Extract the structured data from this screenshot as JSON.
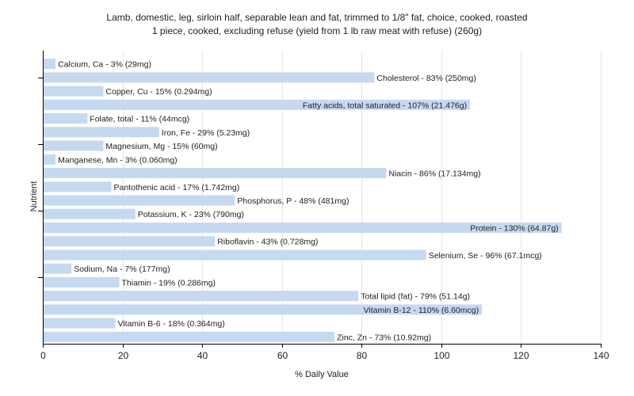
{
  "chart_data": {
    "type": "bar",
    "orientation": "horizontal",
    "title_line1": "Lamb, domestic, leg, sirloin half, separable lean and fat, trimmed to 1/8\" fat, choice, cooked, roasted",
    "title_line2": "1 piece, cooked, excluding refuse (yield from 1 lb raw meat with refuse) (260g)",
    "xlabel": "% Daily Value",
    "ylabel": "Nutrient",
    "xlim": [
      0,
      140
    ],
    "xticks": [
      0,
      20,
      40,
      60,
      80,
      100,
      120,
      140
    ],
    "grid": true,
    "bar_color": "#c5d9f1",
    "categories": [
      "Calcium, Ca",
      "Cholesterol",
      "Copper, Cu",
      "Fatty acids, total saturated",
      "Folate, total",
      "Iron, Fe",
      "Magnesium, Mg",
      "Manganese, Mn",
      "Niacin",
      "Pantothenic acid",
      "Phosphorus, P",
      "Potassium, K",
      "Protein",
      "Riboflavin",
      "Selenium, Se",
      "Sodium, Na",
      "Thiamin",
      "Total lipid (fat)",
      "Vitamin B-12",
      "Vitamin B-6",
      "Zinc, Zn"
    ],
    "values": [
      3,
      83,
      15,
      107,
      11,
      29,
      15,
      3,
      86,
      17,
      48,
      23,
      130,
      43,
      96,
      7,
      19,
      79,
      110,
      18,
      73
    ],
    "labels": [
      "Calcium, Ca - 3% (29mg)",
      "Cholesterol - 83% (250mg)",
      "Copper, Cu - 15% (0.294mg)",
      "Fatty acids, total saturated - 107% (21.476g)",
      "Folate, total - 11% (44mcg)",
      "Iron, Fe - 29% (5.23mg)",
      "Magnesium, Mg - 15% (60mg)",
      "Manganese, Mn - 3% (0.060mg)",
      "Niacin - 86% (17.134mg)",
      "Pantothenic acid - 17% (1.742mg)",
      "Phosphorus, P - 48% (481mg)",
      "Potassium, K - 23% (790mg)",
      "Protein - 130% (64.87g)",
      "Riboflavin - 43% (0.728mg)",
      "Selenium, Se - 96% (67.1mcg)",
      "Sodium, Na - 7% (177mg)",
      "Thiamin - 19% (0.286mg)",
      "Total lipid (fat) - 79% (51.14g)",
      "Vitamin B-12 - 110% (6.60mcg)",
      "Vitamin B-6 - 18% (0.364mg)",
      "Zinc, Zn - 73% (10.92mg)"
    ]
  }
}
